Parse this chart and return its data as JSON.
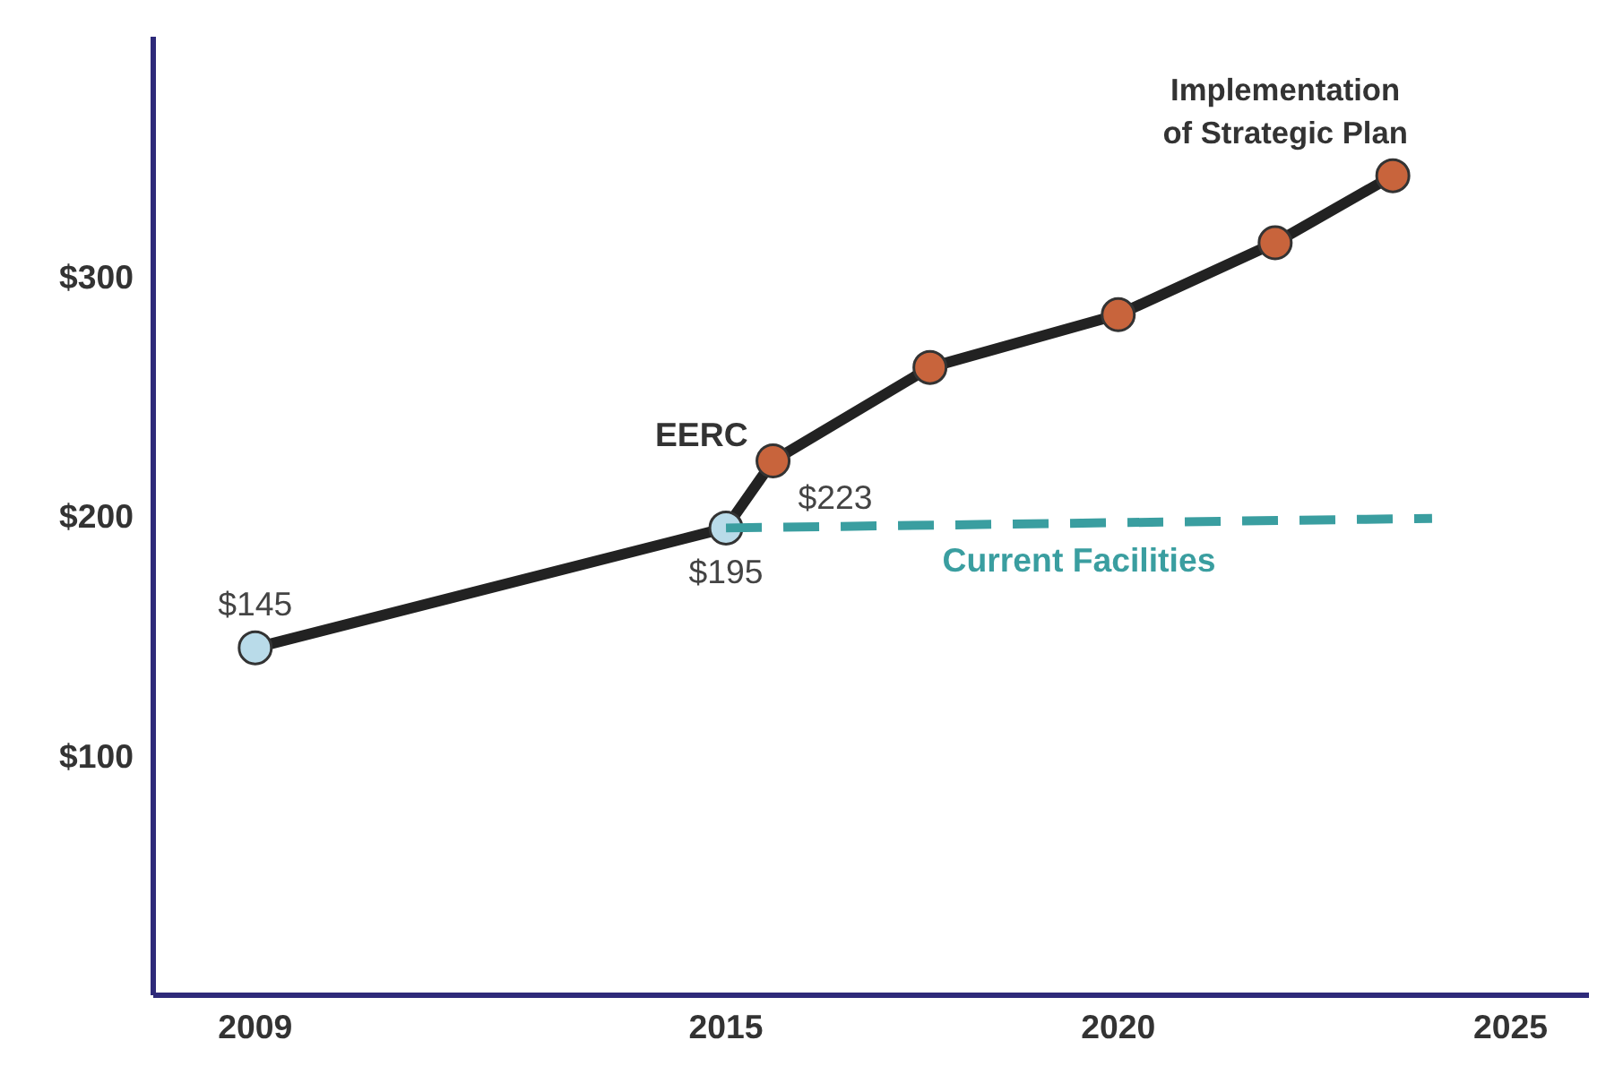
{
  "chart_data": {
    "type": "line",
    "series": [
      {
        "color": "#222222",
        "marker": "circle",
        "colors": [
          "#b9dbe9",
          "#b9dbe9",
          "#c8643c",
          "#c8643c",
          "#c8643c",
          "#c8643c",
          "#c8643c"
        ],
        "x": [
          2009,
          2015,
          2015.6,
          2017.6,
          2020,
          2022,
          2023.5
        ],
        "values": [
          145,
          195,
          223,
          262,
          284,
          314,
          342
        ],
        "value_labels": [
          "$145",
          "$195",
          "$223",
          null,
          null,
          null,
          null
        ]
      },
      {
        "name": "Current Facilities",
        "color": "#3a9ea0",
        "line_style": "dashed",
        "marker": "none",
        "x": [
          2015,
          2024
        ],
        "values": [
          195,
          199
        ]
      }
    ],
    "annotations": [
      {
        "text": "EERC",
        "x": 2015.6,
        "y": 223
      },
      {
        "text": "Implementation\nof Strategic Plan",
        "x": 2023.5,
        "y": 342
      }
    ],
    "xlim": [
      2007.7,
      2026
    ],
    "ylim": [
      0,
      400
    ],
    "xticks": [
      2009,
      2015,
      2020,
      2025
    ],
    "yticks": [
      {
        "value": 100,
        "label": "$100"
      },
      {
        "value": 200,
        "label": "$200"
      },
      {
        "value": 300,
        "label": "$300"
      }
    ],
    "grid": false
  }
}
